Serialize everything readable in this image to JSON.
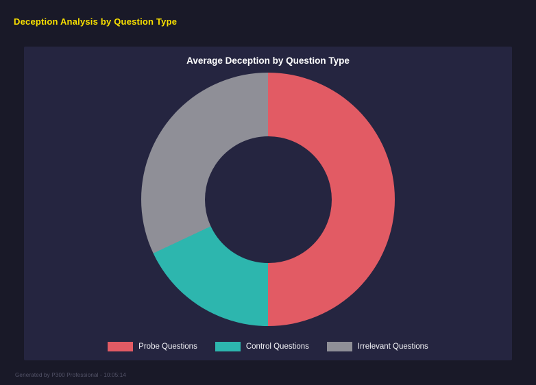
{
  "page": {
    "title": "Deception Analysis by Question Type",
    "footer": "Generated by P300 Professional - 10:05:14"
  },
  "chart_data": {
    "type": "pie",
    "subtype": "donut",
    "title": "Average Deception by Question Type",
    "categories": [
      "Probe Questions",
      "Control Questions",
      "Irrelevant Questions"
    ],
    "values": [
      50,
      18,
      32
    ],
    "unit": "percent",
    "colors": [
      "#e25b64",
      "#2db6ae",
      "#8f8f97"
    ],
    "start_angle_deg": 0,
    "direction": "clockwise",
    "inner_radius_ratio": 0.5,
    "legend_position": "bottom",
    "grid": false
  },
  "colors": {
    "background": "#191928",
    "panel": "#252540",
    "accent_title": "#f9e000",
    "text": "#ffffff",
    "footer_text": "#55556a"
  }
}
